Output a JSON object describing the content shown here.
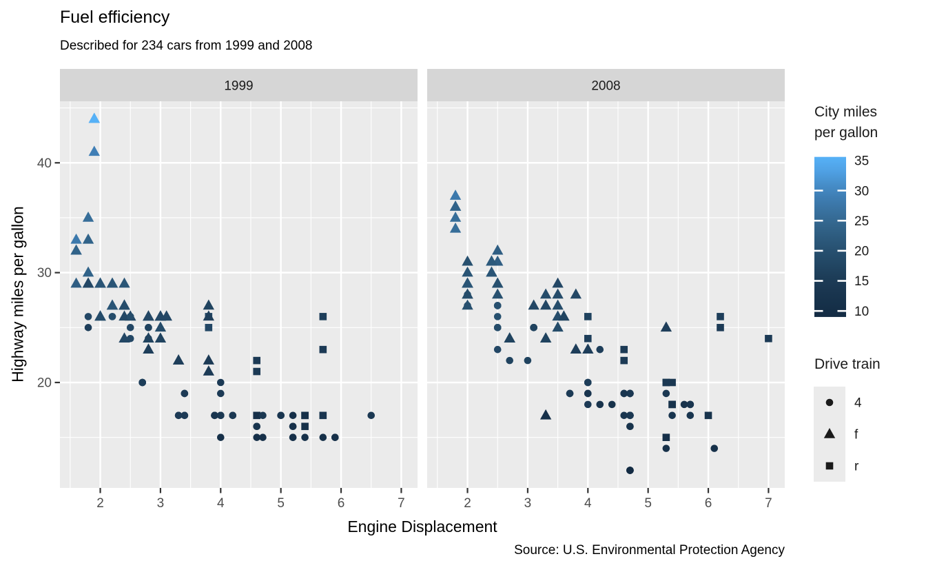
{
  "page": {
    "background": "#FFFFFF"
  },
  "colors": {
    "panel_bg": "#EBEBEB",
    "strip_bg": "#D6D6D6",
    "grid": "#FFFFFF",
    "tick_mark": "#333333",
    "axis_text": "#4D4D4D",
    "strip_text": "#1A1A1A",
    "legend_text": "#1A1A1A",
    "shape_fill": "#1A1A1A",
    "gradient_stops": [
      [
        9,
        "#132B43"
      ],
      [
        15,
        "#1C3A55"
      ],
      [
        20,
        "#27506F"
      ],
      [
        25,
        "#346890"
      ],
      [
        30,
        "#4284BE"
      ],
      [
        35,
        "#56B1F7"
      ]
    ]
  },
  "chart_data": {
    "type": "scatter",
    "title": "Fuel efficiency",
    "subtitle": "Described for 234 cars from 1999 and 2008",
    "caption": "Source: U.S. Environmental Protection Agency",
    "xlabel": "Engine Displacement",
    "ylabel": "Highway miles per gallon",
    "facet_by": "year",
    "facets": [
      "1999",
      "2008"
    ],
    "x_ticks": [
      2,
      3,
      4,
      5,
      6,
      7
    ],
    "x_minor": [
      1.5,
      2.5,
      3.5,
      4.5,
      5.5,
      6.5
    ],
    "y_ticks": [
      20,
      30,
      40
    ],
    "y_minor": [
      15,
      25,
      35,
      45
    ],
    "xlim": [
      1.33,
      7.27
    ],
    "ylim": [
      10.4,
      45.6
    ],
    "grid": "on",
    "legend_color": {
      "title": "City miles\nper gallon",
      "ticks": [
        35,
        30,
        25,
        20,
        15,
        10
      ],
      "domain": [
        9,
        35.6
      ],
      "low": "#132B43",
      "high": "#56B1F7",
      "position": "right"
    },
    "legend_shape": {
      "title": "Drive train",
      "entries": [
        {
          "shape": "circle",
          "label": "4"
        },
        {
          "shape": "triangle",
          "label": "f"
        },
        {
          "shape": "square",
          "label": "r"
        }
      ],
      "position": "right"
    },
    "point_fields": [
      "displ",
      "hwy",
      "cty",
      "drv"
    ],
    "points_1999": [
      [
        1.8,
        29,
        18,
        "f"
      ],
      [
        1.8,
        29,
        21,
        "f"
      ],
      [
        2.8,
        26,
        16,
        "f"
      ],
      [
        2.8,
        26,
        18,
        "f"
      ],
      [
        1.8,
        26,
        18,
        "4"
      ],
      [
        1.8,
        25,
        16,
        "4"
      ],
      [
        2.8,
        25,
        15,
        "4"
      ],
      [
        2.8,
        25,
        17,
        "4"
      ],
      [
        2.8,
        24,
        15,
        "4"
      ],
      [
        5.7,
        17,
        13,
        "r"
      ],
      [
        5.7,
        26,
        16,
        "r"
      ],
      [
        5.7,
        23,
        15,
        "r"
      ],
      [
        5.7,
        15,
        11,
        "4"
      ],
      [
        6.5,
        17,
        14,
        "4"
      ],
      [
        2.4,
        27,
        19,
        "f"
      ],
      [
        3.1,
        26,
        18,
        "f"
      ],
      [
        2.4,
        24,
        18,
        "f"
      ],
      [
        3.0,
        24,
        17,
        "f"
      ],
      [
        3.3,
        22,
        16,
        "f"
      ],
      [
        3.3,
        22,
        16,
        "f"
      ],
      [
        3.8,
        22,
        15,
        "f"
      ],
      [
        3.8,
        21,
        15,
        "f"
      ],
      [
        3.9,
        17,
        13,
        "4"
      ],
      [
        3.9,
        17,
        14,
        "4"
      ],
      [
        5.2,
        17,
        11,
        "4"
      ],
      [
        5.2,
        15,
        11,
        "4"
      ],
      [
        3.9,
        17,
        13,
        "4"
      ],
      [
        5.2,
        16,
        11,
        "4"
      ],
      [
        5.9,
        15,
        11,
        "4"
      ],
      [
        5.2,
        15,
        11,
        "4"
      ],
      [
        5.2,
        16,
        11,
        "4"
      ],
      [
        5.9,
        15,
        11,
        "4"
      ],
      [
        4.6,
        17,
        11,
        "r"
      ],
      [
        5.4,
        17,
        11,
        "r"
      ],
      [
        4.0,
        17,
        14,
        "4"
      ],
      [
        4.0,
        19,
        15,
        "4"
      ],
      [
        4.0,
        17,
        14,
        "4"
      ],
      [
        5.0,
        17,
        13,
        "4"
      ],
      [
        4.2,
        17,
        14,
        "4"
      ],
      [
        4.2,
        17,
        14,
        "4"
      ],
      [
        4.6,
        16,
        13,
        "4"
      ],
      [
        4.6,
        16,
        13,
        "4"
      ],
      [
        5.4,
        15,
        11,
        "4"
      ],
      [
        3.8,
        26,
        18,
        "r"
      ],
      [
        3.8,
        25,
        18,
        "r"
      ],
      [
        4.6,
        21,
        15,
        "r"
      ],
      [
        4.6,
        22,
        15,
        "r"
      ],
      [
        1.6,
        33,
        28,
        "f"
      ],
      [
        1.6,
        32,
        24,
        "f"
      ],
      [
        1.6,
        32,
        25,
        "f"
      ],
      [
        1.6,
        29,
        23,
        "f"
      ],
      [
        1.6,
        32,
        24,
        "f"
      ],
      [
        2.4,
        26,
        18,
        "f"
      ],
      [
        2.4,
        27,
        18,
        "f"
      ],
      [
        2.5,
        26,
        18,
        "f"
      ],
      [
        2.5,
        26,
        18,
        "f"
      ],
      [
        2.0,
        26,
        19,
        "f"
      ],
      [
        2.0,
        29,
        19,
        "f"
      ],
      [
        4.0,
        20,
        15,
        "4"
      ],
      [
        4.7,
        17,
        14,
        "4"
      ],
      [
        4.0,
        15,
        11,
        "4"
      ],
      [
        4.6,
        15,
        11,
        "4"
      ],
      [
        5.4,
        17,
        11,
        "r"
      ],
      [
        5.4,
        16,
        11,
        "r"
      ],
      [
        4.0,
        17,
        14,
        "4"
      ],
      [
        5.0,
        17,
        13,
        "4"
      ],
      [
        2.4,
        29,
        21,
        "f"
      ],
      [
        2.4,
        27,
        19,
        "f"
      ],
      [
        3.0,
        26,
        18,
        "f"
      ],
      [
        3.0,
        25,
        19,
        "f"
      ],
      [
        3.3,
        17,
        14,
        "4"
      ],
      [
        3.3,
        17,
        15,
        "4"
      ],
      [
        3.1,
        26,
        18,
        "f"
      ],
      [
        3.8,
        26,
        16,
        "f"
      ],
      [
        3.8,
        27,
        17,
        "f"
      ],
      [
        2.5,
        25,
        18,
        "4"
      ],
      [
        2.5,
        24,
        18,
        "4"
      ],
      [
        2.2,
        26,
        21,
        "4"
      ],
      [
        2.2,
        26,
        19,
        "4"
      ],
      [
        2.5,
        26,
        19,
        "4"
      ],
      [
        2.5,
        26,
        19,
        "4"
      ],
      [
        2.7,
        20,
        15,
        "4"
      ],
      [
        2.7,
        20,
        16,
        "4"
      ],
      [
        3.4,
        19,
        15,
        "4"
      ],
      [
        3.4,
        17,
        15,
        "4"
      ],
      [
        2.2,
        29,
        21,
        "f"
      ],
      [
        2.2,
        27,
        21,
        "f"
      ],
      [
        3.0,
        26,
        18,
        "f"
      ],
      [
        3.0,
        26,
        18,
        "f"
      ],
      [
        2.2,
        27,
        21,
        "f"
      ],
      [
        2.2,
        29,
        21,
        "f"
      ],
      [
        3.0,
        26,
        18,
        "f"
      ],
      [
        3.0,
        26,
        18,
        "f"
      ],
      [
        1.8,
        30,
        24,
        "f"
      ],
      [
        1.8,
        33,
        24,
        "f"
      ],
      [
        1.8,
        35,
        26,
        "f"
      ],
      [
        4.7,
        15,
        11,
        "4"
      ],
      [
        2.7,
        20,
        15,
        "4"
      ],
      [
        2.7,
        20,
        16,
        "4"
      ],
      [
        3.4,
        17,
        15,
        "4"
      ],
      [
        3.4,
        19,
        15,
        "4"
      ],
      [
        2.0,
        29,
        21,
        "f"
      ],
      [
        2.0,
        26,
        19,
        "f"
      ],
      [
        2.8,
        24,
        17,
        "f"
      ],
      [
        1.9,
        44,
        33,
        "f"
      ],
      [
        2.0,
        29,
        21,
        "f"
      ],
      [
        2.0,
        26,
        19,
        "f"
      ],
      [
        2.8,
        23,
        16,
        "f"
      ],
      [
        2.8,
        24,
        17,
        "f"
      ],
      [
        1.9,
        44,
        35,
        "f"
      ],
      [
        1.9,
        41,
        29,
        "f"
      ],
      [
        2.0,
        29,
        21,
        "f"
      ],
      [
        2.0,
        26,
        19,
        "f"
      ],
      [
        1.8,
        29,
        21,
        "f"
      ],
      [
        1.8,
        29,
        18,
        "f"
      ],
      [
        2.8,
        26,
        16,
        "f"
      ],
      [
        2.8,
        26,
        18,
        "f"
      ]
    ],
    "points_2008": [
      [
        2.0,
        31,
        20,
        "f"
      ],
      [
        2.0,
        30,
        21,
        "f"
      ],
      [
        3.1,
        27,
        18,
        "f"
      ],
      [
        2.0,
        28,
        20,
        "4"
      ],
      [
        2.0,
        27,
        19,
        "4"
      ],
      [
        3.1,
        25,
        17,
        "4"
      ],
      [
        3.1,
        25,
        15,
        "4"
      ],
      [
        3.1,
        25,
        17,
        "4"
      ],
      [
        4.2,
        23,
        16,
        "4"
      ],
      [
        5.3,
        20,
        14,
        "r"
      ],
      [
        5.3,
        15,
        11,
        "r"
      ],
      [
        5.3,
        20,
        14,
        "r"
      ],
      [
        6.0,
        17,
        12,
        "r"
      ],
      [
        6.2,
        26,
        16,
        "r"
      ],
      [
        6.2,
        25,
        15,
        "r"
      ],
      [
        7.0,
        24,
        15,
        "r"
      ],
      [
        5.3,
        19,
        14,
        "4"
      ],
      [
        5.3,
        14,
        11,
        "4"
      ],
      [
        2.4,
        30,
        22,
        "f"
      ],
      [
        3.5,
        29,
        18,
        "f"
      ],
      [
        3.6,
        26,
        17,
        "f"
      ],
      [
        3.3,
        24,
        17,
        "f"
      ],
      [
        3.3,
        24,
        17,
        "f"
      ],
      [
        3.3,
        17,
        11,
        "f"
      ],
      [
        3.8,
        23,
        16,
        "f"
      ],
      [
        4.0,
        23,
        16,
        "f"
      ],
      [
        3.7,
        19,
        15,
        "4"
      ],
      [
        4.7,
        19,
        14,
        "4"
      ],
      [
        4.7,
        19,
        14,
        "4"
      ],
      [
        4.7,
        12,
        9,
        "4"
      ],
      [
        4.7,
        19,
        14,
        "4"
      ],
      [
        4.7,
        17,
        13,
        "4"
      ],
      [
        4.7,
        12,
        9,
        "4"
      ],
      [
        4.7,
        17,
        13,
        "4"
      ],
      [
        5.7,
        18,
        13,
        "4"
      ],
      [
        4.7,
        16,
        12,
        "4"
      ],
      [
        4.7,
        12,
        9,
        "4"
      ],
      [
        4.7,
        17,
        13,
        "4"
      ],
      [
        4.7,
        17,
        13,
        "4"
      ],
      [
        4.7,
        16,
        12,
        "4"
      ],
      [
        4.7,
        12,
        9,
        "4"
      ],
      [
        5.7,
        17,
        13,
        "4"
      ],
      [
        5.4,
        18,
        12,
        "r"
      ],
      [
        4.0,
        19,
        13,
        "4"
      ],
      [
        4.6,
        19,
        13,
        "4"
      ],
      [
        4.6,
        17,
        13,
        "4"
      ],
      [
        5.4,
        17,
        13,
        "4"
      ],
      [
        4.0,
        26,
        17,
        "r"
      ],
      [
        4.0,
        24,
        16,
        "r"
      ],
      [
        4.6,
        23,
        15,
        "r"
      ],
      [
        4.6,
        22,
        15,
        "r"
      ],
      [
        5.4,
        20,
        14,
        "r"
      ],
      [
        1.8,
        34,
        26,
        "f"
      ],
      [
        1.8,
        36,
        25,
        "f"
      ],
      [
        1.8,
        36,
        24,
        "f"
      ],
      [
        2.0,
        29,
        21,
        "f"
      ],
      [
        2.4,
        30,
        21,
        "f"
      ],
      [
        2.4,
        31,
        21,
        "f"
      ],
      [
        3.3,
        28,
        19,
        "f"
      ],
      [
        2.0,
        28,
        20,
        "f"
      ],
      [
        2.0,
        27,
        20,
        "f"
      ],
      [
        2.7,
        24,
        17,
        "f"
      ],
      [
        2.7,
        24,
        16,
        "f"
      ],
      [
        2.7,
        24,
        17,
        "f"
      ],
      [
        3.0,
        22,
        17,
        "4"
      ],
      [
        3.7,
        19,
        15,
        "4"
      ],
      [
        4.7,
        12,
        9,
        "4"
      ],
      [
        4.7,
        19,
        14,
        "4"
      ],
      [
        5.7,
        18,
        13,
        "4"
      ],
      [
        6.1,
        14,
        11,
        "4"
      ],
      [
        4.2,
        18,
        12,
        "4"
      ],
      [
        4.4,
        18,
        12,
        "4"
      ],
      [
        5.4,
        18,
        12,
        "r"
      ],
      [
        4.0,
        19,
        13,
        "4"
      ],
      [
        4.6,
        19,
        13,
        "4"
      ],
      [
        2.5,
        31,
        23,
        "f"
      ],
      [
        2.5,
        32,
        23,
        "f"
      ],
      [
        3.5,
        27,
        19,
        "f"
      ],
      [
        3.5,
        26,
        19,
        "f"
      ],
      [
        3.5,
        25,
        19,
        "f"
      ],
      [
        4.0,
        20,
        14,
        "4"
      ],
      [
        5.6,
        18,
        12,
        "4"
      ],
      [
        3.8,
        28,
        18,
        "f"
      ],
      [
        5.3,
        25,
        16,
        "f"
      ],
      [
        2.5,
        27,
        20,
        "4"
      ],
      [
        2.5,
        25,
        19,
        "4"
      ],
      [
        2.5,
        26,
        20,
        "4"
      ],
      [
        2.5,
        23,
        18,
        "4"
      ],
      [
        2.5,
        25,
        20,
        "4"
      ],
      [
        2.5,
        27,
        20,
        "4"
      ],
      [
        2.5,
        25,
        19,
        "4"
      ],
      [
        2.5,
        27,
        20,
        "4"
      ],
      [
        4.0,
        20,
        16,
        "4"
      ],
      [
        4.7,
        17,
        14,
        "4"
      ],
      [
        2.4,
        31,
        21,
        "f"
      ],
      [
        2.4,
        31,
        21,
        "f"
      ],
      [
        3.5,
        28,
        19,
        "f"
      ],
      [
        2.4,
        31,
        21,
        "f"
      ],
      [
        2.4,
        31,
        22,
        "f"
      ],
      [
        3.3,
        27,
        18,
        "f"
      ],
      [
        1.8,
        37,
        28,
        "f"
      ],
      [
        1.8,
        35,
        26,
        "f"
      ],
      [
        5.7,
        18,
        13,
        "4"
      ],
      [
        2.7,
        22,
        17,
        "4"
      ],
      [
        4.0,
        18,
        15,
        "4"
      ],
      [
        4.0,
        20,
        16,
        "4"
      ],
      [
        2.0,
        29,
        21,
        "f"
      ],
      [
        2.0,
        29,
        22,
        "f"
      ],
      [
        2.0,
        29,
        22,
        "f"
      ],
      [
        2.0,
        29,
        21,
        "f"
      ],
      [
        2.5,
        29,
        21,
        "f"
      ],
      [
        2.5,
        29,
        21,
        "f"
      ],
      [
        2.5,
        28,
        20,
        "f"
      ],
      [
        2.5,
        29,
        20,
        "f"
      ],
      [
        2.0,
        28,
        19,
        "f"
      ],
      [
        2.0,
        29,
        21,
        "f"
      ],
      [
        3.6,
        26,
        17,
        "f"
      ]
    ]
  }
}
